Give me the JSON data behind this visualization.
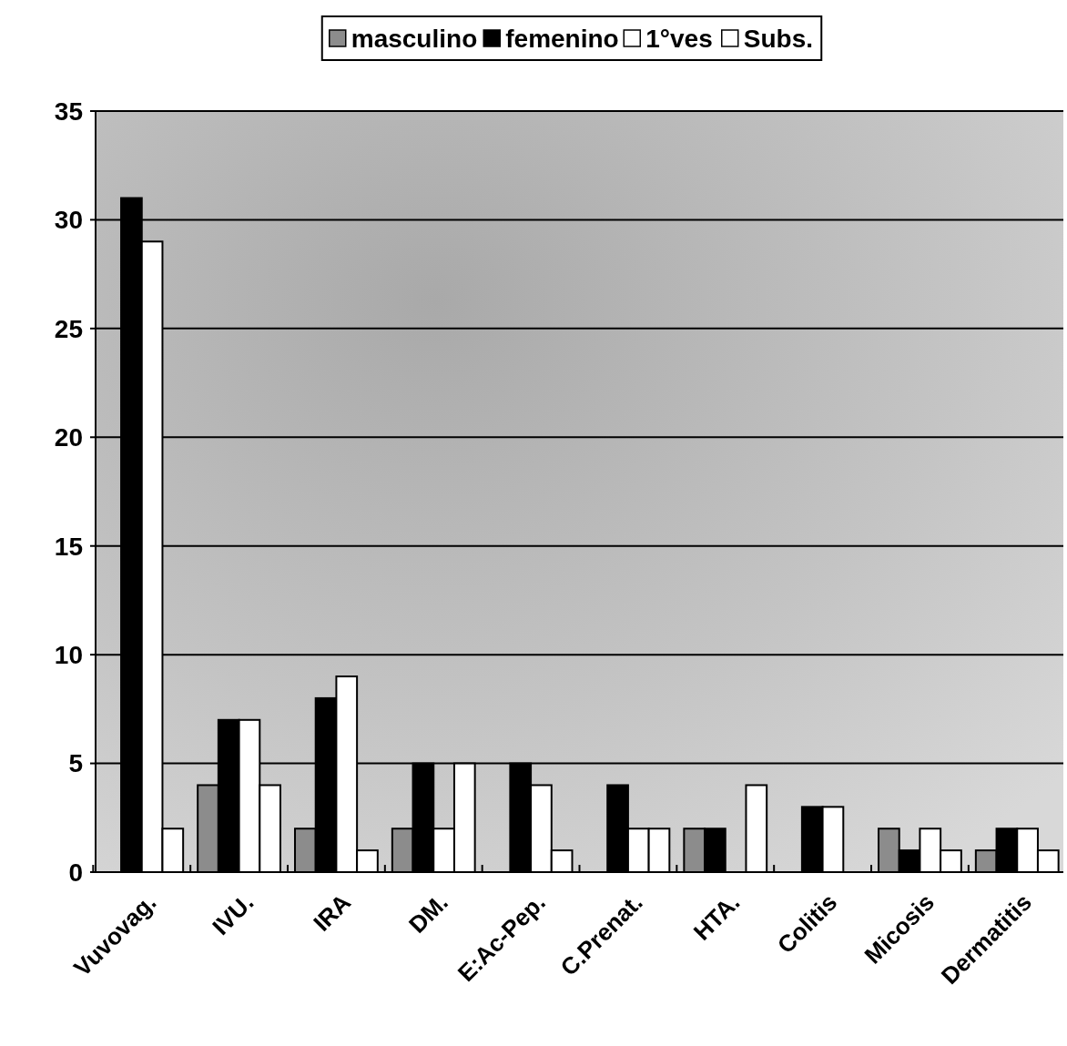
{
  "chart_data": {
    "type": "bar",
    "categories": [
      "Vuvovag.",
      "IVU.",
      "IRA",
      "DM.",
      "E:Ac-Pep.",
      "C.Prenat.",
      "HTA.",
      "Colitis",
      "Micosis",
      "Dermatitis"
    ],
    "series": [
      {
        "name": "masculino",
        "color": "#8c8c8c",
        "values": [
          0,
          4,
          2,
          2,
          0,
          0,
          2,
          0,
          2,
          1
        ]
      },
      {
        "name": "femenino",
        "color": "#000000",
        "values": [
          31,
          7,
          8,
          5,
          5,
          4,
          2,
          3,
          1,
          2
        ]
      },
      {
        "name": "1°ves",
        "color": "#ffffff",
        "values": [
          29,
          7,
          9,
          2,
          4,
          2,
          0,
          3,
          2,
          2
        ]
      },
      {
        "name": "Subs.",
        "color": "#ffffff",
        "values": [
          2,
          4,
          1,
          5,
          1,
          2,
          4,
          0,
          1,
          1
        ]
      }
    ],
    "ylim": [
      0,
      35
    ],
    "yticks": [
      0,
      5,
      10,
      15,
      20,
      25,
      30,
      35
    ],
    "grid": "y",
    "legend": "top"
  }
}
